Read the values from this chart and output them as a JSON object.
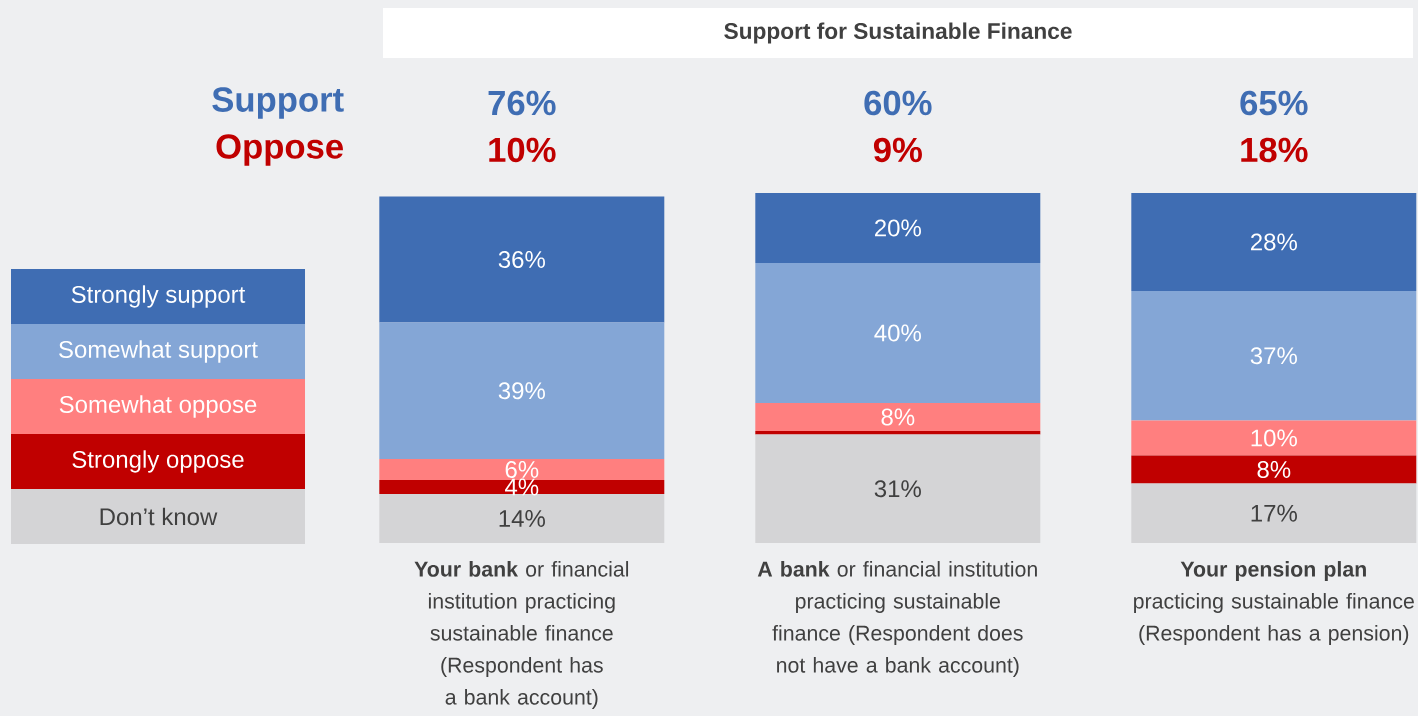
{
  "chart_data": {
    "type": "bar",
    "stacked": true,
    "title": "Support for Sustainable Finance",
    "categories": [
      "**Your bank** or financial institution practicing sustainable finance (Respondent has a bank account)",
      "**A bank** or financial institution practicing sustainable finance (Respondent does not have a bank account)",
      "**Your pension plan** practicing sustainable finance (Respondent has a pension)"
    ],
    "series": [
      {
        "name": "Don’t know",
        "color": "#d4d4d6",
        "values": [
          14,
          31,
          17
        ],
        "value_labels": [
          "14%",
          "31%",
          "17%"
        ]
      },
      {
        "name": "Strongly oppose",
        "color": "#c00000",
        "values": [
          4,
          1,
          8
        ],
        "value_labels": [
          "4%",
          null,
          "8%"
        ]
      },
      {
        "name": "Somewhat oppose",
        "color": "#ff7f7f",
        "values": [
          6,
          8,
          10
        ],
        "value_labels": [
          "6%",
          "8%",
          "10%"
        ]
      },
      {
        "name": "Somewhat support",
        "color": "#84a6d6",
        "values": [
          39,
          40,
          37
        ],
        "value_labels": [
          "39%",
          "40%",
          "37%"
        ]
      },
      {
        "name": "Strongly support",
        "color": "#3f6db3",
        "values": [
          36,
          20,
          28
        ],
        "value_labels": [
          "36%",
          "20%",
          "28%"
        ]
      }
    ],
    "ylim": [
      0,
      100
    ],
    "legend": "left",
    "annotations": [
      "Support",
      "Oppose",
      "76%",
      "10%",
      "60%",
      "9%",
      "65%",
      "18%"
    ]
  }
}
